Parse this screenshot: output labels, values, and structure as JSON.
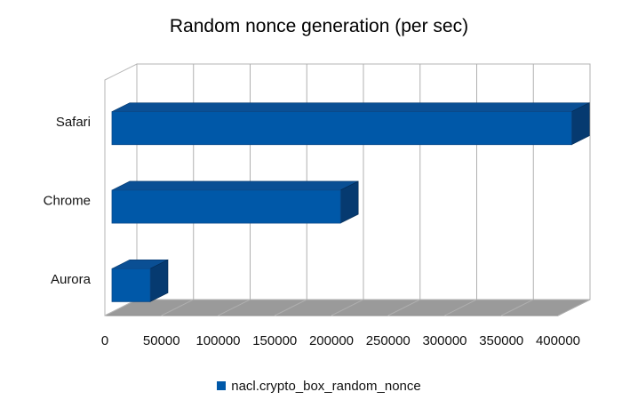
{
  "chart_data": {
    "type": "bar",
    "orientation": "horizontal",
    "title": "Random nonce generation (per sec)",
    "xlabel": "",
    "ylabel": "",
    "categories": [
      "Safari",
      "Chrome",
      "Aurora"
    ],
    "series": [
      {
        "name": "nacl.crypto_box_random_nonce",
        "values": [
          412000,
          208000,
          40000
        ],
        "color": "#0058a8"
      }
    ],
    "xlim": [
      0,
      400000
    ],
    "xticks": [
      0,
      50000,
      100000,
      150000,
      200000,
      250000,
      300000,
      350000,
      400000
    ],
    "grid": true,
    "legend_position": "bottom",
    "three_d": true
  }
}
